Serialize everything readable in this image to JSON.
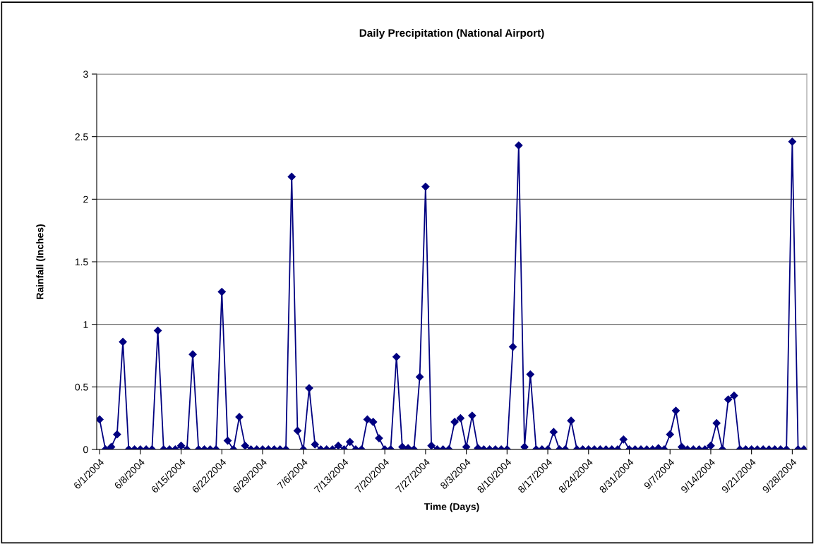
{
  "chart_data": {
    "type": "line",
    "title": "Daily Precipitation (National Airport)",
    "xlabel": "Time (Days)",
    "ylabel": "Rainfall (Inches)",
    "x": [
      "2004-06-01",
      "2004-06-02",
      "2004-06-03",
      "2004-06-04",
      "2004-06-05",
      "2004-06-06",
      "2004-06-07",
      "2004-06-08",
      "2004-06-09",
      "2004-06-10",
      "2004-06-11",
      "2004-06-12",
      "2004-06-13",
      "2004-06-14",
      "2004-06-15",
      "2004-06-16",
      "2004-06-17",
      "2004-06-18",
      "2004-06-19",
      "2004-06-20",
      "2004-06-21",
      "2004-06-22",
      "2004-06-23",
      "2004-06-24",
      "2004-06-25",
      "2004-06-26",
      "2004-06-27",
      "2004-06-28",
      "2004-06-29",
      "2004-06-30",
      "2004-07-01",
      "2004-07-02",
      "2004-07-03",
      "2004-07-04",
      "2004-07-05",
      "2004-07-06",
      "2004-07-07",
      "2004-07-08",
      "2004-07-09",
      "2004-07-10",
      "2004-07-11",
      "2004-07-12",
      "2004-07-13",
      "2004-07-14",
      "2004-07-15",
      "2004-07-16",
      "2004-07-17",
      "2004-07-18",
      "2004-07-19",
      "2004-07-20",
      "2004-07-21",
      "2004-07-22",
      "2004-07-23",
      "2004-07-24",
      "2004-07-25",
      "2004-07-26",
      "2004-07-27",
      "2004-07-28",
      "2004-07-29",
      "2004-07-30",
      "2004-07-31",
      "2004-08-01",
      "2004-08-02",
      "2004-08-03",
      "2004-08-04",
      "2004-08-05",
      "2004-08-06",
      "2004-08-07",
      "2004-08-08",
      "2004-08-09",
      "2004-08-10",
      "2004-08-11",
      "2004-08-12",
      "2004-08-13",
      "2004-08-14",
      "2004-08-15",
      "2004-08-16",
      "2004-08-17",
      "2004-08-18",
      "2004-08-19",
      "2004-08-20",
      "2004-08-21",
      "2004-08-22",
      "2004-08-23",
      "2004-08-24",
      "2004-08-25",
      "2004-08-26",
      "2004-08-27",
      "2004-08-28",
      "2004-08-29",
      "2004-08-30",
      "2004-08-31",
      "2004-09-01",
      "2004-09-02",
      "2004-09-03",
      "2004-09-04",
      "2004-09-05",
      "2004-09-06",
      "2004-09-07",
      "2004-09-08",
      "2004-09-09",
      "2004-09-10",
      "2004-09-11",
      "2004-09-12",
      "2004-09-13",
      "2004-09-14",
      "2004-09-15",
      "2004-09-16",
      "2004-09-17",
      "2004-09-18",
      "2004-09-19",
      "2004-09-20",
      "2004-09-21",
      "2004-09-22",
      "2004-09-23",
      "2004-09-24",
      "2004-09-25",
      "2004-09-26",
      "2004-09-27",
      "2004-09-28",
      "2004-09-29",
      "2004-09-30"
    ],
    "series": [
      {
        "color": "#000080",
        "values": [
          0.24,
          0,
          0.02,
          0.12,
          0.86,
          0,
          0,
          0,
          0,
          0,
          0.95,
          0,
          0,
          0,
          0.03,
          0,
          0.76,
          0,
          0,
          0,
          0,
          1.26,
          0.07,
          0,
          0.26,
          0.03,
          0,
          0,
          0,
          0,
          0,
          0,
          0,
          2.18,
          0.15,
          0,
          0.49,
          0.04,
          0,
          0,
          0,
          0.03,
          0,
          0.06,
          0,
          0,
          0.24,
          0.22,
          0.09,
          0,
          0,
          0.74,
          0.02,
          0.01,
          0,
          0.58,
          2.1,
          0.03,
          0,
          0,
          0,
          0.22,
          0.25,
          0.02,
          0.27,
          0.01,
          0,
          0,
          0,
          0,
          0,
          0.82,
          2.43,
          0.02,
          0.6,
          0,
          0,
          0,
          0.14,
          0,
          0,
          0.23,
          0,
          0,
          0,
          0,
          0,
          0,
          0,
          0,
          0.08,
          0,
          0,
          0,
          0,
          0,
          0.01,
          0,
          0.12,
          0.31,
          0.02,
          0,
          0,
          0,
          0,
          0.03,
          0.21,
          0,
          0.4,
          0.43,
          0,
          0,
          0,
          0,
          0,
          0,
          0,
          0,
          0,
          2.46,
          0,
          0
        ]
      }
    ],
    "xlim": [
      "2004-05-31T12:00",
      "2004-09-30T12:00"
    ],
    "xticks": [
      {
        "value": "2004-06-01",
        "label": "6/1/2004"
      },
      {
        "value": "2004-06-08",
        "label": "6/8/2004"
      },
      {
        "value": "2004-06-15",
        "label": "6/15/2004"
      },
      {
        "value": "2004-06-22",
        "label": "6/22/2004"
      },
      {
        "value": "2004-06-29",
        "label": "6/29/2004"
      },
      {
        "value": "2004-07-06",
        "label": "7/6/2004"
      },
      {
        "value": "2004-07-13",
        "label": "7/13/2004"
      },
      {
        "value": "2004-07-20",
        "label": "7/20/2004"
      },
      {
        "value": "2004-07-27",
        "label": "7/27/2004"
      },
      {
        "value": "2004-08-03",
        "label": "8/3/2004"
      },
      {
        "value": "2004-08-10",
        "label": "8/10/2004"
      },
      {
        "value": "2004-08-17",
        "label": "8/17/2004"
      },
      {
        "value": "2004-08-24",
        "label": "8/24/2004"
      },
      {
        "value": "2004-08-31",
        "label": "8/31/2004"
      },
      {
        "value": "2004-09-07",
        "label": "9/7/2004"
      },
      {
        "value": "2004-09-14",
        "label": "9/14/2004"
      },
      {
        "value": "2004-09-21",
        "label": "9/21/2004"
      },
      {
        "value": "2004-09-28",
        "label": "9/28/2004"
      }
    ],
    "ylim": [
      0,
      3
    ],
    "yticks": [
      0,
      0.5,
      1,
      1.5,
      2,
      2.5,
      3
    ],
    "grid": "y",
    "marker": "diamond",
    "line_style": "solid"
  }
}
